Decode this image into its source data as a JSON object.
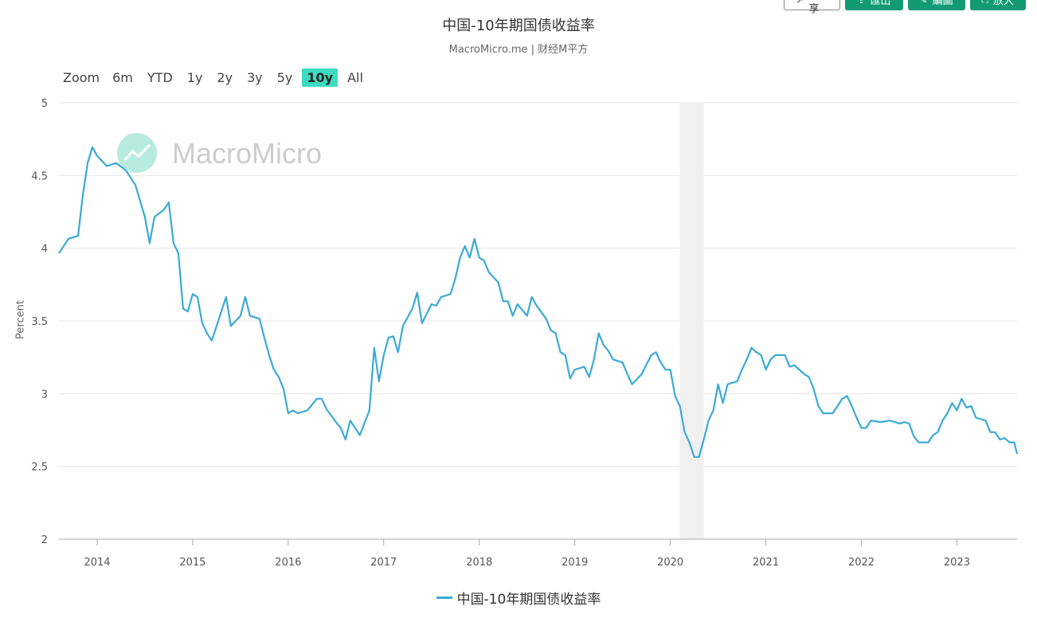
{
  "toolbar": {
    "share_label": "分享",
    "export_label": "匯出",
    "draw_label": "編圖",
    "enlarge_label": "放大",
    "accent": "#129a74"
  },
  "header": {
    "title": "中国-10年期国债收益率",
    "subtitle": "MacroMicro.me | 财经M平方"
  },
  "zoom": {
    "label": "Zoom",
    "options": [
      "6m",
      "YTD",
      "1y",
      "2y",
      "3y",
      "5y",
      "10y",
      "All"
    ],
    "active": "10y"
  },
  "watermark": "MacroMicro",
  "chart_data": {
    "type": "line",
    "title": "中国-10年期国债收益率",
    "ylabel": "Percent",
    "xlabel": "",
    "ylim": [
      2,
      5
    ],
    "yticks": [
      "2",
      "2.5",
      "3",
      "3.5",
      "4",
      "4.5",
      "5"
    ],
    "xlim": [
      2013.6,
      2023.63
    ],
    "xticks": [
      "2014",
      "2015",
      "2016",
      "2017",
      "2018",
      "2019",
      "2020",
      "2021",
      "2022",
      "2023"
    ],
    "shaded_range": [
      2020.1,
      2020.35
    ],
    "line_color": "#3aaad6",
    "series": [
      {
        "name": "中国-10年期国债收益率",
        "points": [
          [
            2013.6,
            3.98
          ],
          [
            2013.7,
            4.05
          ],
          [
            2013.8,
            4.1
          ],
          [
            2013.85,
            4.35
          ],
          [
            2013.9,
            4.6
          ],
          [
            2013.95,
            4.68
          ],
          [
            2014.0,
            4.65
          ],
          [
            2014.1,
            4.55
          ],
          [
            2014.2,
            4.6
          ],
          [
            2014.3,
            4.52
          ],
          [
            2014.4,
            4.45
          ],
          [
            2014.5,
            4.2
          ],
          [
            2014.55,
            4.05
          ],
          [
            2014.6,
            4.2
          ],
          [
            2014.7,
            4.28
          ],
          [
            2014.75,
            4.3
          ],
          [
            2014.8,
            4.05
          ],
          [
            2014.85,
            3.95
          ],
          [
            2014.9,
            3.6
          ],
          [
            2014.95,
            3.55
          ],
          [
            2015.0,
            3.7
          ],
          [
            2015.05,
            3.65
          ],
          [
            2015.1,
            3.5
          ],
          [
            2015.15,
            3.4
          ],
          [
            2015.2,
            3.38
          ],
          [
            2015.3,
            3.55
          ],
          [
            2015.35,
            3.68
          ],
          [
            2015.4,
            3.45
          ],
          [
            2015.5,
            3.55
          ],
          [
            2015.55,
            3.65
          ],
          [
            2015.6,
            3.55
          ],
          [
            2015.7,
            3.5
          ],
          [
            2015.75,
            3.4
          ],
          [
            2015.8,
            3.25
          ],
          [
            2015.85,
            3.18
          ],
          [
            2015.9,
            3.1
          ],
          [
            2015.95,
            3.05
          ],
          [
            2016.0,
            2.85
          ],
          [
            2016.05,
            2.9
          ],
          [
            2016.1,
            2.85
          ],
          [
            2016.2,
            2.9
          ],
          [
            2016.3,
            2.95
          ],
          [
            2016.35,
            2.98
          ],
          [
            2016.4,
            2.88
          ],
          [
            2016.5,
            2.82
          ],
          [
            2016.55,
            2.75
          ],
          [
            2016.6,
            2.7
          ],
          [
            2016.65,
            2.8
          ],
          [
            2016.7,
            2.78
          ],
          [
            2016.75,
            2.7
          ],
          [
            2016.85,
            2.9
          ],
          [
            2016.9,
            3.3
          ],
          [
            2016.95,
            3.1
          ],
          [
            2017.0,
            3.25
          ],
          [
            2017.05,
            3.4
          ],
          [
            2017.1,
            3.38
          ],
          [
            2017.15,
            3.3
          ],
          [
            2017.2,
            3.45
          ],
          [
            2017.3,
            3.6
          ],
          [
            2017.35,
            3.68
          ],
          [
            2017.4,
            3.5
          ],
          [
            2017.5,
            3.6
          ],
          [
            2017.55,
            3.62
          ],
          [
            2017.6,
            3.65
          ],
          [
            2017.7,
            3.7
          ],
          [
            2017.75,
            3.78
          ],
          [
            2017.8,
            3.95
          ],
          [
            2017.85,
            4.0
          ],
          [
            2017.9,
            3.95
          ],
          [
            2017.95,
            4.05
          ],
          [
            2018.0,
            3.95
          ],
          [
            2018.05,
            3.9
          ],
          [
            2018.1,
            3.85
          ],
          [
            2018.2,
            3.75
          ],
          [
            2018.25,
            3.65
          ],
          [
            2018.3,
            3.62
          ],
          [
            2018.35,
            3.55
          ],
          [
            2018.4,
            3.6
          ],
          [
            2018.5,
            3.55
          ],
          [
            2018.55,
            3.65
          ],
          [
            2018.6,
            3.62
          ],
          [
            2018.7,
            3.5
          ],
          [
            2018.75,
            3.45
          ],
          [
            2018.8,
            3.4
          ],
          [
            2018.85,
            3.3
          ],
          [
            2018.9,
            3.25
          ],
          [
            2018.95,
            3.12
          ],
          [
            2019.0,
            3.15
          ],
          [
            2019.1,
            3.2
          ],
          [
            2019.15,
            3.1
          ],
          [
            2019.2,
            3.25
          ],
          [
            2019.25,
            3.4
          ],
          [
            2019.3,
            3.35
          ],
          [
            2019.35,
            3.28
          ],
          [
            2019.4,
            3.25
          ],
          [
            2019.5,
            3.2
          ],
          [
            2019.55,
            3.15
          ],
          [
            2019.6,
            3.05
          ],
          [
            2019.7,
            3.15
          ],
          [
            2019.8,
            3.25
          ],
          [
            2019.85,
            3.3
          ],
          [
            2019.9,
            3.2
          ],
          [
            2019.95,
            3.18
          ],
          [
            2020.0,
            3.15
          ],
          [
            2020.05,
            3.0
          ],
          [
            2020.1,
            2.9
          ],
          [
            2020.15,
            2.75
          ],
          [
            2020.2,
            2.65
          ],
          [
            2020.25,
            2.58
          ],
          [
            2020.3,
            2.55
          ],
          [
            2020.35,
            2.7
          ],
          [
            2020.4,
            2.8
          ],
          [
            2020.45,
            2.9
          ],
          [
            2020.5,
            3.05
          ],
          [
            2020.55,
            2.95
          ],
          [
            2020.6,
            3.05
          ],
          [
            2020.7,
            3.1
          ],
          [
            2020.75,
            3.15
          ],
          [
            2020.8,
            3.25
          ],
          [
            2020.85,
            3.3
          ],
          [
            2020.9,
            3.3
          ],
          [
            2020.95,
            3.25
          ],
          [
            2021.0,
            3.18
          ],
          [
            2021.05,
            3.22
          ],
          [
            2021.1,
            3.28
          ],
          [
            2021.2,
            3.25
          ],
          [
            2021.25,
            3.2
          ],
          [
            2021.3,
            3.18
          ],
          [
            2021.4,
            3.15
          ],
          [
            2021.45,
            3.1
          ],
          [
            2021.5,
            3.05
          ],
          [
            2021.55,
            2.9
          ],
          [
            2021.6,
            2.88
          ],
          [
            2021.65,
            2.85
          ],
          [
            2021.7,
            2.88
          ],
          [
            2021.8,
            2.95
          ],
          [
            2021.85,
            3.0
          ],
          [
            2021.9,
            2.9
          ],
          [
            2021.95,
            2.85
          ],
          [
            2022.0,
            2.75
          ],
          [
            2022.05,
            2.78
          ],
          [
            2022.1,
            2.8
          ],
          [
            2022.2,
            2.82
          ],
          [
            2022.3,
            2.8
          ],
          [
            2022.35,
            2.82
          ],
          [
            2022.4,
            2.78
          ],
          [
            2022.45,
            2.82
          ],
          [
            2022.5,
            2.78
          ],
          [
            2022.55,
            2.72
          ],
          [
            2022.6,
            2.65
          ],
          [
            2022.7,
            2.68
          ],
          [
            2022.75,
            2.7
          ],
          [
            2022.8,
            2.75
          ],
          [
            2022.85,
            2.8
          ],
          [
            2022.9,
            2.88
          ],
          [
            2022.95,
            2.92
          ],
          [
            2023.0,
            2.9
          ],
          [
            2023.05,
            2.95
          ],
          [
            2023.1,
            2.92
          ],
          [
            2023.15,
            2.9
          ],
          [
            2023.2,
            2.85
          ],
          [
            2023.3,
            2.8
          ],
          [
            2023.35,
            2.75
          ],
          [
            2023.4,
            2.72
          ],
          [
            2023.45,
            2.7
          ],
          [
            2023.5,
            2.68
          ],
          [
            2023.55,
            2.68
          ],
          [
            2023.6,
            2.65
          ],
          [
            2023.63,
            2.6
          ]
        ]
      }
    ]
  }
}
